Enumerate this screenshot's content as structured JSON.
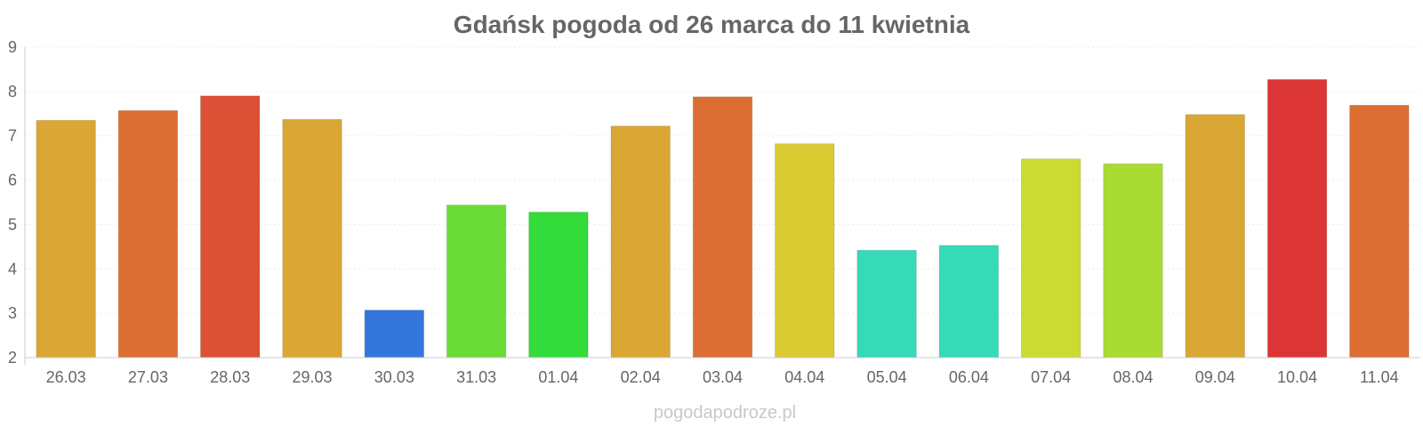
{
  "chart_data": {
    "type": "bar",
    "title": "Gdańsk pogoda od 26 marca do 11 kwietnia",
    "xlabel": "",
    "ylabel": "",
    "categories": [
      "26.03",
      "27.03",
      "28.03",
      "29.03",
      "30.03",
      "31.03",
      "01.04",
      "02.04",
      "03.04",
      "04.04",
      "05.04",
      "06.04",
      "07.04",
      "08.04",
      "09.04",
      "10.04",
      "11.04"
    ],
    "values": [
      7.35,
      7.57,
      7.9,
      7.37,
      3.07,
      5.44,
      5.28,
      7.22,
      7.88,
      6.82,
      4.42,
      4.53,
      6.48,
      6.37,
      7.48,
      8.27,
      7.69
    ],
    "bar_colors": [
      "#dba734",
      "#dc6e34",
      "#dc5035",
      "#dba734",
      "#3377dc",
      "#6bdc35",
      "#33dc3a",
      "#dba734",
      "#dc6e34",
      "#dbcb33",
      "#34dbb6",
      "#34dbb6",
      "#cbdb33",
      "#aadb33",
      "#dba734",
      "#dc3535",
      "#dc6e34"
    ],
    "ylim": [
      2,
      9
    ],
    "yticks": [
      2,
      3,
      4,
      5,
      6,
      7,
      8,
      9
    ],
    "grid": true,
    "legend": "none"
  },
  "watermark": "pogodapodroze.pl"
}
